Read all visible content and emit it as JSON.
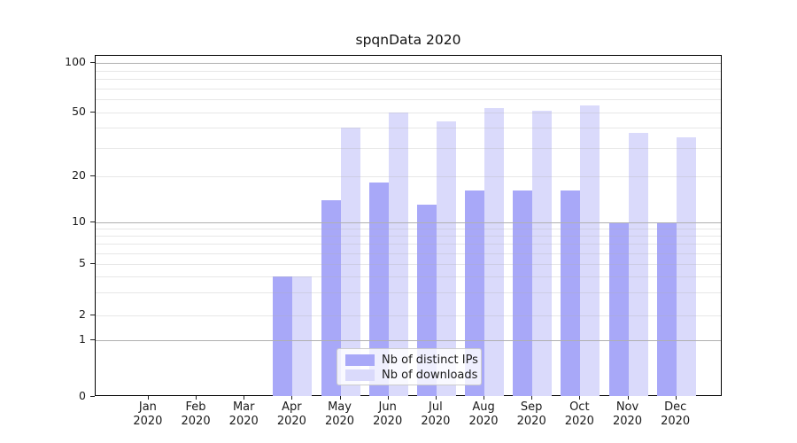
{
  "chart_data": {
    "type": "bar",
    "title": "spqnData 2020",
    "categories": [
      "Jan 2020",
      "Feb 2020",
      "Mar 2020",
      "Apr 2020",
      "May 2020",
      "Jun 2020",
      "Jul 2020",
      "Aug 2020",
      "Sep 2020",
      "Oct 2020",
      "Nov 2020",
      "Dec 2020"
    ],
    "months": [
      "Jan",
      "Feb",
      "Mar",
      "Apr",
      "May",
      "Jun",
      "Jul",
      "Aug",
      "Sep",
      "Oct",
      "Nov",
      "Dec"
    ],
    "year": "2020",
    "series": [
      {
        "name": "Nb of distinct IPs",
        "color": "#a8a8f8",
        "values": [
          0,
          0,
          0,
          4,
          14,
          18,
          13,
          16,
          16,
          16,
          10,
          10
        ]
      },
      {
        "name": "Nb of downloads",
        "color": "#dadafb",
        "values": [
          0,
          0,
          0,
          4,
          40,
          50,
          44,
          53,
          51,
          55,
          37,
          35
        ]
      }
    ],
    "yscale": "symlog",
    "yticks": [
      0,
      1,
      2,
      5,
      10,
      20,
      50,
      100
    ],
    "ylim": [
      0,
      115
    ],
    "xlabel": "",
    "ylabel": "",
    "grid": "horizontal major+minor",
    "legend_position": "lower center"
  },
  "colors": {
    "major_grid": "#b0b0b0",
    "minor_grid": "rgba(176,176,176,0.30)",
    "axis": "#000000",
    "text": "#1a1a1a",
    "legend_bg": "rgba(255,255,255,0.82)",
    "legend_border": "#cccccc"
  }
}
